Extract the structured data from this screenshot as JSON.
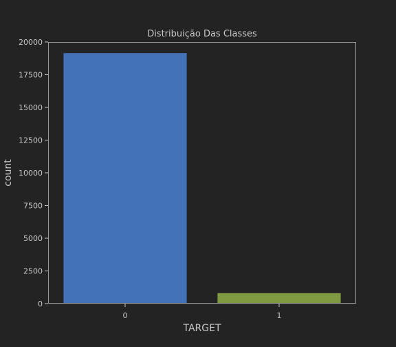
{
  "chart_data": {
    "type": "bar",
    "title": "Distribuição Das Classes",
    "xlabel": "TARGET",
    "ylabel": "count",
    "categories": [
      "0",
      "1"
    ],
    "values": [
      19150,
      800
    ],
    "colors": [
      "#4472b8",
      "#7f9a41"
    ],
    "ylim": [
      0,
      20000
    ],
    "yticks": [
      0,
      2500,
      5000,
      7500,
      10000,
      12500,
      15000,
      17500,
      20000
    ],
    "grid": false,
    "background": "#232323"
  }
}
